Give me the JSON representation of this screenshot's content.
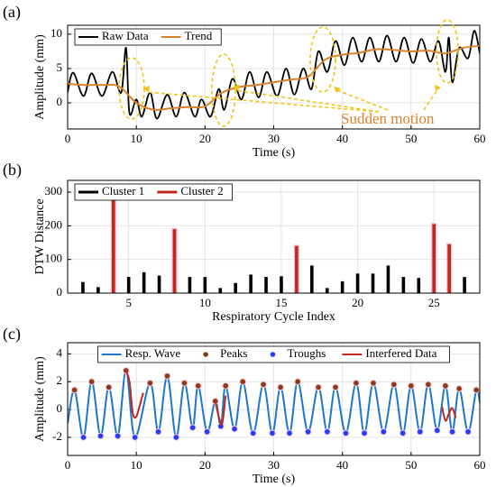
{
  "chart_data": [
    {
      "type": "line",
      "panel_label": "(a)",
      "xlabel": "Time (s)",
      "ylabel": "Amplitude (mm)",
      "xlim": [
        0,
        60
      ],
      "ylim": [
        -3.8,
        11.3
      ],
      "xticks": [
        0,
        10,
        20,
        30,
        40,
        50,
        60
      ],
      "yticks": [
        0,
        5,
        10
      ],
      "grid": true,
      "legend": "upper left",
      "annotation": "Sudden motion",
      "series": [
        {
          "name": "Raw Data",
          "color": "#000000",
          "x": [
            0,
            0.8,
            2.3,
            3.5,
            5,
            6.5,
            7.8,
            8.5,
            9,
            10,
            10.8,
            12,
            13,
            14.5,
            15.8,
            17,
            18.5,
            19.5,
            20.8,
            22,
            22.8,
            24,
            25.3,
            26.5,
            27.8,
            29,
            30.5,
            31.8,
            33,
            34.3,
            35.5,
            36.5,
            37.8,
            39,
            40.3,
            41.5,
            42.8,
            44,
            45.3,
            46.5,
            47.8,
            49,
            50.3,
            51.5,
            52.8,
            54,
            55,
            55.5,
            56,
            57,
            58.3,
            59.2,
            60
          ],
          "values": [
            1.5,
            4.4,
            1.0,
            4.3,
            1.0,
            4.5,
            1.5,
            8.0,
            -1.5,
            0.5,
            -2.0,
            1.5,
            -2.3,
            1.2,
            -2.0,
            1.5,
            -2.0,
            0.5,
            -2.0,
            2.0,
            -1.0,
            3.5,
            0.5,
            4.5,
            0.8,
            4.5,
            1.0,
            5.0,
            1.2,
            5.0,
            2.0,
            7.5,
            4.5,
            9.0,
            5.5,
            9.5,
            6.0,
            9.5,
            6.0,
            9.8,
            6.0,
            9.5,
            5.8,
            9.3,
            6.0,
            9.0,
            4.5,
            9.5,
            3.0,
            8.0,
            6.5,
            10.5,
            7.2
          ]
        },
        {
          "name": "Trend",
          "color": "#d9822b",
          "x": [
            0,
            2.5,
            5,
            7.5,
            10,
            12.5,
            15,
            17.5,
            20,
            22.5,
            25,
            27.5,
            30,
            32.5,
            35,
            37.5,
            40,
            42.5,
            45,
            47.5,
            50,
            52.5,
            55,
            57.5,
            60
          ],
          "values": [
            2.8,
            2.6,
            2.6,
            2.4,
            0,
            -1,
            -0.8,
            -0.6,
            -0.5,
            1.5,
            2.3,
            2.6,
            3,
            3.4,
            3.8,
            6.3,
            7,
            7.3,
            7.8,
            7.7,
            7.5,
            7.6,
            7.2,
            8,
            8.3
          ]
        }
      ]
    },
    {
      "type": "bar",
      "panel_label": "(b)",
      "xlabel": "Respiratory Cycle Index",
      "ylabel": "DTW Distance",
      "xlim": [
        1,
        28
      ],
      "ylim": [
        0,
        335
      ],
      "xticks": [
        5,
        10,
        15,
        20,
        25
      ],
      "yticks": [
        0,
        100,
        200,
        300
      ],
      "grid": true,
      "legend": "upper left",
      "series": [
        {
          "name": "Cluster 1",
          "color": "#000000",
          "x": [
            2,
            3,
            5,
            6,
            7,
            9,
            10,
            11,
            12,
            13,
            14,
            15,
            17,
            18,
            19,
            20,
            21,
            22,
            23,
            24,
            27
          ],
          "values": [
            33,
            18,
            48,
            62,
            52,
            48,
            48,
            15,
            30,
            55,
            48,
            50,
            82,
            15,
            35,
            58,
            58,
            82,
            48,
            45,
            48
          ]
        },
        {
          "name": "Cluster 2",
          "color": "#c0281e",
          "x": [
            4,
            8,
            16,
            25,
            26
          ],
          "values": [
            290,
            190,
            140,
            205,
            145
          ]
        }
      ]
    },
    {
      "type": "line",
      "panel_label": "(c)",
      "xlabel": "Time (s)",
      "ylabel": "Amplitude (mm)",
      "xlim": [
        0,
        60
      ],
      "ylim": [
        -3.3,
        4.8
      ],
      "xticks": [
        0,
        10,
        20,
        30,
        40,
        50,
        60
      ],
      "yticks": [
        -2,
        0,
        2,
        4
      ],
      "grid": true,
      "legend": "upper center",
      "series": [
        {
          "name": "Resp. Wave",
          "color": "#1f77c8",
          "style": "line",
          "x": [
            0,
            1.0,
            2.3,
            3.5,
            4.8,
            6.0,
            7.3,
            8.5,
            9.8,
            12.0,
            13.2,
            14.5,
            15.8,
            17.0,
            18.2,
            19.0,
            20.3,
            21.5,
            22.3,
            23.0,
            24.3,
            25.5,
            27.0,
            28.5,
            29.8,
            31.0,
            32.3,
            33.5,
            35.0,
            36.5,
            37.8,
            39.0,
            40.5,
            42.0,
            43.2,
            44.5,
            46.0,
            47.5,
            48.8,
            50.0,
            51.3,
            52.5,
            53.8,
            55.0,
            56.0,
            57.0,
            58.3,
            59.5,
            60
          ],
          "values": [
            -1.0,
            1.4,
            -2.0,
            2.0,
            -1.9,
            1.6,
            -1.9,
            2.8,
            -2.0,
            1.9,
            -1.6,
            2.4,
            -2.0,
            1.9,
            -1.3,
            1.7,
            -1.6,
            0.6,
            -1.2,
            1.7,
            -1.4,
            2.0,
            -1.7,
            1.8,
            -1.7,
            1.6,
            -1.7,
            2.0,
            -1.6,
            1.6,
            -1.6,
            1.6,
            -1.7,
            1.9,
            -1.7,
            1.9,
            -1.6,
            1.8,
            -1.7,
            1.7,
            -1.6,
            1.8,
            -1.5,
            1.7,
            -1.6,
            1.5,
            -1.6,
            1.4,
            0.5
          ]
        },
        {
          "name": "Peaks",
          "color": "#8b3a1a",
          "style": "scatter",
          "x": [
            1.0,
            3.5,
            6.0,
            8.5,
            12.0,
            14.5,
            17.0,
            19.0,
            21.5,
            23.0,
            25.5,
            28.5,
            31.0,
            33.5,
            36.5,
            39.0,
            42.0,
            44.5,
            47.5,
            50.0,
            52.5,
            55.0,
            57.0,
            59.5
          ],
          "values": [
            1.4,
            2.0,
            1.6,
            2.8,
            1.9,
            2.4,
            1.9,
            1.7,
            0.6,
            1.7,
            2.0,
            1.8,
            1.6,
            2.0,
            1.6,
            1.6,
            1.9,
            1.9,
            1.8,
            1.7,
            1.8,
            1.7,
            1.5,
            1.4
          ]
        },
        {
          "name": "Troughs",
          "color": "#1f3fff",
          "style": "scatter",
          "x": [
            2.3,
            4.8,
            7.3,
            9.8,
            13.2,
            15.8,
            18.2,
            20.3,
            22.3,
            24.3,
            27.0,
            29.8,
            32.3,
            35.0,
            37.8,
            40.5,
            43.2,
            46.0,
            48.8,
            51.3,
            53.8,
            56.0,
            58.3
          ],
          "values": [
            -2.0,
            -1.9,
            -1.9,
            -2.0,
            -1.6,
            -2.0,
            -1.3,
            -1.6,
            -1.2,
            -1.4,
            -1.7,
            -1.7,
            -1.7,
            -1.6,
            -1.6,
            -1.7,
            -1.7,
            -1.6,
            -1.7,
            -1.6,
            -1.5,
            -1.6,
            -1.6
          ]
        },
        {
          "name": "Interfered Data",
          "color": "#c0281e",
          "style": "line",
          "x": [
            8.5,
            9.0,
            9.5,
            10.0,
            10.5,
            11.0,
            20.8,
            21.5,
            22.0,
            22.5,
            23.0,
            54.0,
            54.5,
            55.0,
            55.5,
            56.0,
            56.5
          ],
          "values": [
            2.8,
            2.0,
            -0.3,
            -0.5,
            0.3,
            1.2,
            null,
            0.6,
            -0.5,
            -1.0,
            1.0,
            null,
            0.2,
            -0.8,
            -0.3,
            0.1,
            -0.6
          ]
        }
      ]
    }
  ]
}
